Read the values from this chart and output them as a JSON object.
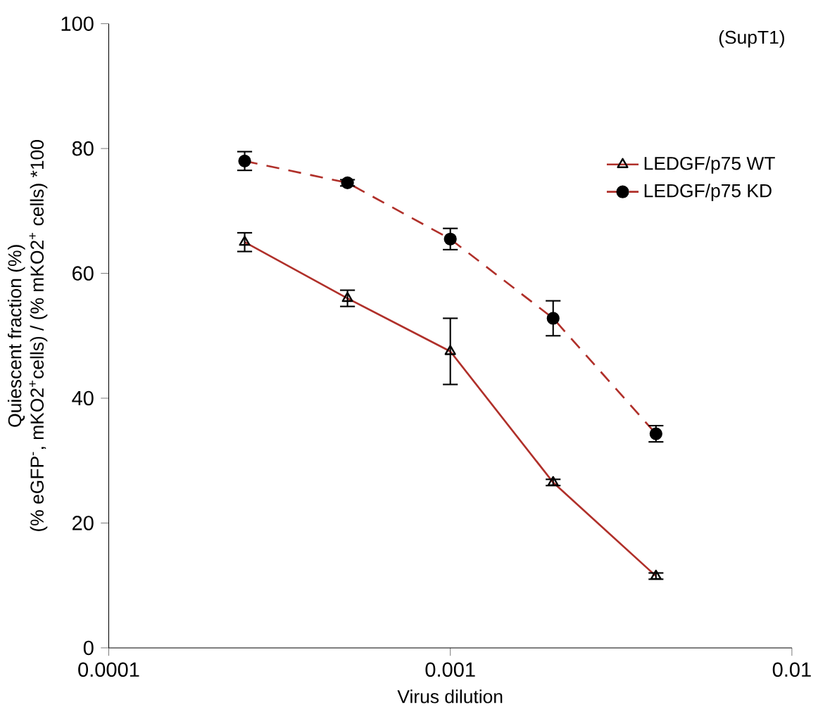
{
  "chart_data": {
    "type": "line",
    "xlabel": "Virus dilution",
    "ylabel": "Quiescent fraction (%)\n(% eGFP$^{-}$, mKO2$^{+}$cells) / (% mKO2$^{+}$ cells) *100",
    "annotations": [
      "(SupT1)"
    ],
    "x": [
      0.00025,
      0.0005,
      0.001,
      0.002,
      0.004
    ],
    "log": "x",
    "xlim": [
      0.0001,
      0.01
    ],
    "xticks": [
      0.0001,
      0.001,
      0.01
    ],
    "ylim": [
      0,
      100
    ],
    "yticks": [
      0,
      20,
      40,
      60,
      80,
      100
    ],
    "legend": "top right",
    "grid": false,
    "series": [
      {
        "name": "LEDGF/p75 WT",
        "color": "#b0302a",
        "marker": "triangle",
        "line_style": "solid",
        "values": [
          65,
          56,
          47.5,
          26.5,
          11.5
        ],
        "errors": [
          1.5,
          1.3,
          5.3,
          0.5,
          0.5
        ]
      },
      {
        "name": "LEDGF/p75 KD",
        "color": "#b0302a",
        "marker": "circle",
        "line_style": "dashed",
        "values": [
          78,
          74.5,
          65.5,
          52.8,
          34.3
        ],
        "errors": [
          1.5,
          0.5,
          1.7,
          2.8,
          1.3
        ]
      }
    ]
  }
}
